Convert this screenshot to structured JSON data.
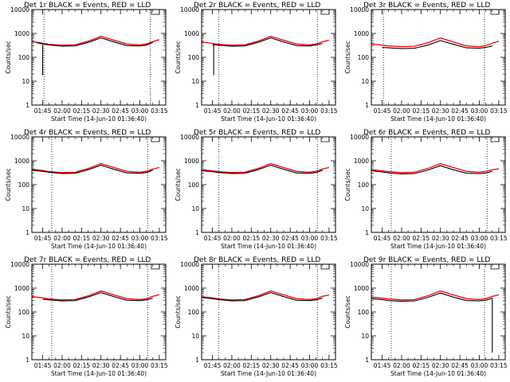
{
  "figure": {
    "background": "#ffffff",
    "colors": {
      "events": "#000000",
      "lld": "#ff0000",
      "axes": "#000000"
    }
  },
  "chart_data": [
    {
      "type": "line",
      "title": "Det 1r BLACK = Events, RED = LLD",
      "xlabel": "Start Time (14-Jun-10 01:36:40)",
      "ylabel": "Counts/sec",
      "x_start_hours": 1.611,
      "x_end_hours": 3.333,
      "xticks": [
        "01:45",
        "02:00",
        "02:15",
        "02:30",
        "02:45",
        "03:00",
        "03:15"
      ],
      "yticks": [
        "1",
        "10",
        "100",
        "1000",
        "10000"
      ],
      "ylim": [
        1,
        10000
      ],
      "yscale": "log",
      "grid": false,
      "vlines_dotted": [
        "01:46",
        "03:08"
      ],
      "series": [
        {
          "name": "Events",
          "color": "#000000",
          "x": [
            "01:40",
            "01:45",
            "01:50",
            "02:00",
            "02:10",
            "02:20",
            "02:30",
            "02:40",
            "02:50",
            "03:00",
            "03:05",
            "03:10"
          ],
          "values": [
            420,
            360,
            330,
            290,
            300,
            420,
            650,
            440,
            310,
            300,
            320,
            420
          ]
        },
        {
          "name": "LLD",
          "color": "#ff0000",
          "x": [
            "01:37",
            "01:45",
            "01:50",
            "02:00",
            "02:10",
            "02:20",
            "02:30",
            "02:40",
            "02:50",
            "03:00",
            "03:05",
            "03:10",
            "03:15"
          ],
          "values": [
            460,
            390,
            350,
            320,
            330,
            470,
            760,
            520,
            360,
            330,
            360,
            450,
            550
          ]
        }
      ],
      "dropouts": [
        {
          "x": "01:45",
          "low": 18,
          "high": 330
        }
      ]
    },
    {
      "type": "line",
      "title": "Det 2r BLACK = Events, RED = LLD",
      "xlabel": "Start Time (14-Jun-10 01:36:40)",
      "ylabel": "Counts/sec",
      "x_start_hours": 1.611,
      "x_end_hours": 3.333,
      "xticks": [
        "01:45",
        "02:00",
        "02:15",
        "02:30",
        "02:45",
        "03:00",
        "03:15"
      ],
      "yticks": [
        "1",
        "10",
        "100",
        "1000",
        "10000"
      ],
      "ylim": [
        1,
        10000
      ],
      "yscale": "log",
      "grid": false,
      "vlines_dotted": [
        "01:50",
        "03:06"
      ],
      "series": [
        {
          "name": "Events",
          "color": "#000000",
          "x": [
            "01:45",
            "01:50",
            "02:00",
            "02:10",
            "02:20",
            "02:30",
            "02:40",
            "02:50",
            "03:00",
            "03:05",
            "03:10"
          ],
          "values": [
            340,
            320,
            290,
            300,
            420,
            650,
            440,
            310,
            300,
            330,
            380
          ]
        },
        {
          "name": "LLD",
          "color": "#ff0000",
          "x": [
            "01:37",
            "01:45",
            "01:50",
            "02:00",
            "02:10",
            "02:20",
            "02:30",
            "02:40",
            "02:50",
            "03:00",
            "03:05",
            "03:10",
            "03:15"
          ],
          "values": [
            440,
            380,
            350,
            320,
            330,
            470,
            760,
            520,
            360,
            330,
            360,
            450,
            520
          ]
        }
      ],
      "dropouts": [
        {
          "x": "01:46",
          "low": 18,
          "high": 330
        }
      ]
    },
    {
      "type": "line",
      "title": "Det 3r BLACK = Events, RED = LLD",
      "xlabel": "Start Time (14-Jun-10 01:36:40)",
      "ylabel": "Counts/sec",
      "x_start_hours": 1.611,
      "x_end_hours": 3.333,
      "xticks": [
        "01:45",
        "02:00",
        "02:15",
        "02:30",
        "02:45",
        "03:00",
        "03:15"
      ],
      "yticks": [
        "1",
        "10",
        "100",
        "1000",
        "10000"
      ],
      "ylim": [
        1,
        10000
      ],
      "yscale": "log",
      "grid": false,
      "vlines_dotted": [
        "01:46",
        "03:04"
      ],
      "series": [
        {
          "name": "Events",
          "color": "#000000",
          "x": [
            "01:45",
            "01:50",
            "02:00",
            "02:10",
            "02:20",
            "02:30",
            "02:40",
            "02:50",
            "03:00",
            "03:05",
            "03:10"
          ],
          "values": [
            260,
            250,
            230,
            240,
            320,
            500,
            350,
            250,
            240,
            260,
            300
          ]
        },
        {
          "name": "LLD",
          "color": "#ff0000",
          "x": [
            "01:37",
            "01:45",
            "01:50",
            "02:00",
            "02:10",
            "02:20",
            "02:30",
            "02:40",
            "02:50",
            "03:00",
            "03:05",
            "03:10",
            "03:15"
          ],
          "values": [
            360,
            320,
            300,
            280,
            290,
            400,
            650,
            440,
            300,
            280,
            310,
            390,
            480
          ]
        }
      ],
      "dropouts": []
    },
    {
      "type": "line",
      "title": "Det 4r BLACK = Events, RED = LLD",
      "xlabel": "Start Time (14-Jun-10 01:36:40)",
      "ylabel": "Counts/sec",
      "x_start_hours": 1.611,
      "x_end_hours": 3.333,
      "xticks": [
        "01:45",
        "02:00",
        "02:15",
        "02:30",
        "02:45",
        "03:00",
        "03:15"
      ],
      "yticks": [
        "1",
        "10",
        "100",
        "1000",
        "10000"
      ],
      "ylim": [
        1,
        10000
      ],
      "yscale": "log",
      "grid": false,
      "vlines_dotted": [
        "01:52",
        "03:06"
      ],
      "series": [
        {
          "name": "Events",
          "color": "#000000",
          "x": [
            "01:37",
            "01:45",
            "01:50",
            "02:00",
            "02:10",
            "02:20",
            "02:30",
            "02:40",
            "02:50",
            "03:00",
            "03:05",
            "03:10"
          ],
          "values": [
            400,
            360,
            330,
            290,
            300,
            420,
            650,
            440,
            310,
            300,
            320,
            400
          ]
        },
        {
          "name": "LLD",
          "color": "#ff0000",
          "x": [
            "01:37",
            "01:45",
            "01:50",
            "02:00",
            "02:10",
            "02:20",
            "02:30",
            "02:40",
            "02:50",
            "03:00",
            "03:05",
            "03:10",
            "03:15"
          ],
          "values": [
            440,
            390,
            350,
            320,
            330,
            470,
            760,
            520,
            360,
            330,
            360,
            450,
            520
          ]
        }
      ],
      "dropouts": []
    },
    {
      "type": "line",
      "title": "Det 5r BLACK = Events, RED = LLD",
      "xlabel": "Start Time (14-Jun-10 01:36:40)",
      "ylabel": "Counts/sec",
      "x_start_hours": 1.611,
      "x_end_hours": 3.333,
      "xticks": [
        "01:45",
        "02:00",
        "02:15",
        "02:30",
        "02:45",
        "03:00",
        "03:15"
      ],
      "yticks": [
        "1",
        "10",
        "100",
        "1000",
        "10000"
      ],
      "ylim": [
        1,
        10000
      ],
      "yscale": "log",
      "grid": false,
      "vlines_dotted": [
        "01:50",
        "03:06"
      ],
      "series": [
        {
          "name": "Events",
          "color": "#000000",
          "x": [
            "01:37",
            "01:45",
            "01:50",
            "02:00",
            "02:10",
            "02:20",
            "02:30",
            "02:40",
            "02:50",
            "03:00",
            "03:05",
            "03:10"
          ],
          "values": [
            380,
            350,
            320,
            290,
            300,
            420,
            650,
            440,
            310,
            300,
            320,
            400
          ]
        },
        {
          "name": "LLD",
          "color": "#ff0000",
          "x": [
            "01:37",
            "01:45",
            "01:50",
            "02:00",
            "02:10",
            "02:20",
            "02:30",
            "02:40",
            "02:50",
            "03:00",
            "03:05",
            "03:10",
            "03:15"
          ],
          "values": [
            420,
            380,
            350,
            320,
            330,
            470,
            760,
            520,
            360,
            330,
            360,
            450,
            520
          ]
        }
      ],
      "dropouts": []
    },
    {
      "type": "line",
      "title": "Det 6r BLACK = Events, RED = LLD",
      "xlabel": "Start Time (14-Jun-10 01:36:40)",
      "ylabel": "Counts/sec",
      "x_start_hours": 1.611,
      "x_end_hours": 3.333,
      "xticks": [
        "01:45",
        "02:00",
        "02:15",
        "02:30",
        "02:45",
        "03:00",
        "03:15"
      ],
      "yticks": [
        "1",
        "10",
        "100",
        "1000",
        "10000"
      ],
      "ylim": [
        1,
        10000
      ],
      "yscale": "log",
      "grid": false,
      "vlines_dotted": [
        "01:52",
        "03:06"
      ],
      "series": [
        {
          "name": "Events",
          "color": "#000000",
          "x": [
            "01:37",
            "01:45",
            "01:50",
            "02:00",
            "02:10",
            "02:20",
            "02:30",
            "02:40",
            "02:50",
            "03:00",
            "03:05",
            "03:10"
          ],
          "values": [
            380,
            340,
            310,
            280,
            290,
            400,
            620,
            420,
            300,
            290,
            310,
            360
          ]
        },
        {
          "name": "LLD",
          "color": "#ff0000",
          "x": [
            "01:37",
            "01:45",
            "01:50",
            "02:00",
            "02:10",
            "02:20",
            "02:30",
            "02:40",
            "02:50",
            "03:00",
            "03:05",
            "03:10",
            "03:15"
          ],
          "values": [
            420,
            380,
            350,
            320,
            330,
            470,
            760,
            520,
            360,
            330,
            360,
            420,
            460
          ]
        }
      ],
      "dropouts": []
    },
    {
      "type": "line",
      "title": "Det 7r BLACK = Events, RED = LLD",
      "xlabel": "Start Time (14-Jun-10 01:36:40)",
      "ylabel": "Counts/sec",
      "x_start_hours": 1.611,
      "x_end_hours": 3.333,
      "xticks": [
        "01:45",
        "02:00",
        "02:15",
        "02:30",
        "02:45",
        "03:00",
        "03:15"
      ],
      "yticks": [
        "1",
        "10",
        "100",
        "1000",
        "10000"
      ],
      "ylim": [
        1,
        10000
      ],
      "yscale": "log",
      "grid": false,
      "vlines_dotted": [
        "01:52",
        "03:06"
      ],
      "series": [
        {
          "name": "Events",
          "color": "#000000",
          "x": [
            "01:45",
            "01:50",
            "02:00",
            "02:10",
            "02:20",
            "02:30",
            "02:40",
            "02:50",
            "03:00",
            "03:05",
            "03:10"
          ],
          "values": [
            340,
            320,
            290,
            300,
            420,
            650,
            440,
            310,
            300,
            320,
            380
          ]
        },
        {
          "name": "LLD",
          "color": "#ff0000",
          "x": [
            "01:37",
            "01:45",
            "01:50",
            "02:00",
            "02:10",
            "02:20",
            "02:30",
            "02:40",
            "02:50",
            "03:00",
            "03:05",
            "03:10",
            "03:15"
          ],
          "values": [
            440,
            390,
            350,
            320,
            330,
            470,
            760,
            520,
            360,
            330,
            360,
            450,
            540
          ]
        }
      ],
      "dropouts": []
    },
    {
      "type": "line",
      "title": "Det 8r BLACK = Events, RED = LLD",
      "xlabel": "Start Time (14-Jun-10 01:36:40)",
      "ylabel": "Counts/sec",
      "x_start_hours": 1.611,
      "x_end_hours": 3.333,
      "xticks": [
        "01:45",
        "02:00",
        "02:15",
        "02:30",
        "02:45",
        "03:00",
        "03:15"
      ],
      "yticks": [
        "1",
        "10",
        "100",
        "1000",
        "10000"
      ],
      "ylim": [
        1,
        10000
      ],
      "yscale": "log",
      "grid": false,
      "vlines_dotted": [
        "01:50",
        "03:06"
      ],
      "series": [
        {
          "name": "Events",
          "color": "#000000",
          "x": [
            "01:37",
            "01:45",
            "01:50",
            "02:00",
            "02:10",
            "02:20",
            "02:30",
            "02:40",
            "02:50",
            "03:00",
            "03:05",
            "03:10"
          ],
          "values": [
            400,
            360,
            330,
            290,
            300,
            420,
            650,
            440,
            310,
            300,
            320,
            380
          ]
        },
        {
          "name": "LLD",
          "color": "#ff0000",
          "x": [
            "01:37",
            "01:45",
            "01:50",
            "02:00",
            "02:10",
            "02:20",
            "02:30",
            "02:40",
            "02:50",
            "03:00",
            "03:05",
            "03:10",
            "03:15"
          ],
          "values": [
            440,
            390,
            350,
            320,
            330,
            470,
            760,
            520,
            360,
            330,
            360,
            450,
            520
          ]
        }
      ],
      "dropouts": []
    },
    {
      "type": "line",
      "title": "Det 9r BLACK = Events, RED = LLD",
      "xlabel": "Start Time (14-Jun-10 01:36:40)",
      "ylabel": "Counts/sec",
      "x_start_hours": 1.611,
      "x_end_hours": 3.333,
      "xticks": [
        "01:45",
        "02:00",
        "02:15",
        "02:30",
        "02:45",
        "03:00",
        "03:15"
      ],
      "yticks": [
        "1",
        "10",
        "100",
        "1000",
        "10000"
      ],
      "ylim": [
        1,
        10000
      ],
      "yscale": "log",
      "grid": false,
      "vlines_dotted": [
        "01:52",
        "03:04"
      ],
      "series": [
        {
          "name": "Events",
          "color": "#000000",
          "x": [
            "01:37",
            "01:45",
            "01:50",
            "02:00",
            "02:10",
            "02:20",
            "02:30",
            "02:40",
            "02:50",
            "03:00",
            "03:05",
            "03:10"
          ],
          "values": [
            360,
            330,
            300,
            280,
            290,
            400,
            620,
            420,
            300,
            290,
            310,
            380
          ]
        },
        {
          "name": "LLD",
          "color": "#ff0000",
          "x": [
            "01:37",
            "01:45",
            "01:50",
            "02:00",
            "02:10",
            "02:20",
            "02:30",
            "02:40",
            "02:50",
            "03:00",
            "03:05",
            "03:10",
            "03:15"
          ],
          "values": [
            420,
            380,
            350,
            320,
            330,
            470,
            760,
            520,
            360,
            330,
            360,
            450,
            520
          ]
        }
      ],
      "dropouts": [
        {
          "x": "03:10",
          "low": 2,
          "high": 380
        }
      ]
    }
  ]
}
